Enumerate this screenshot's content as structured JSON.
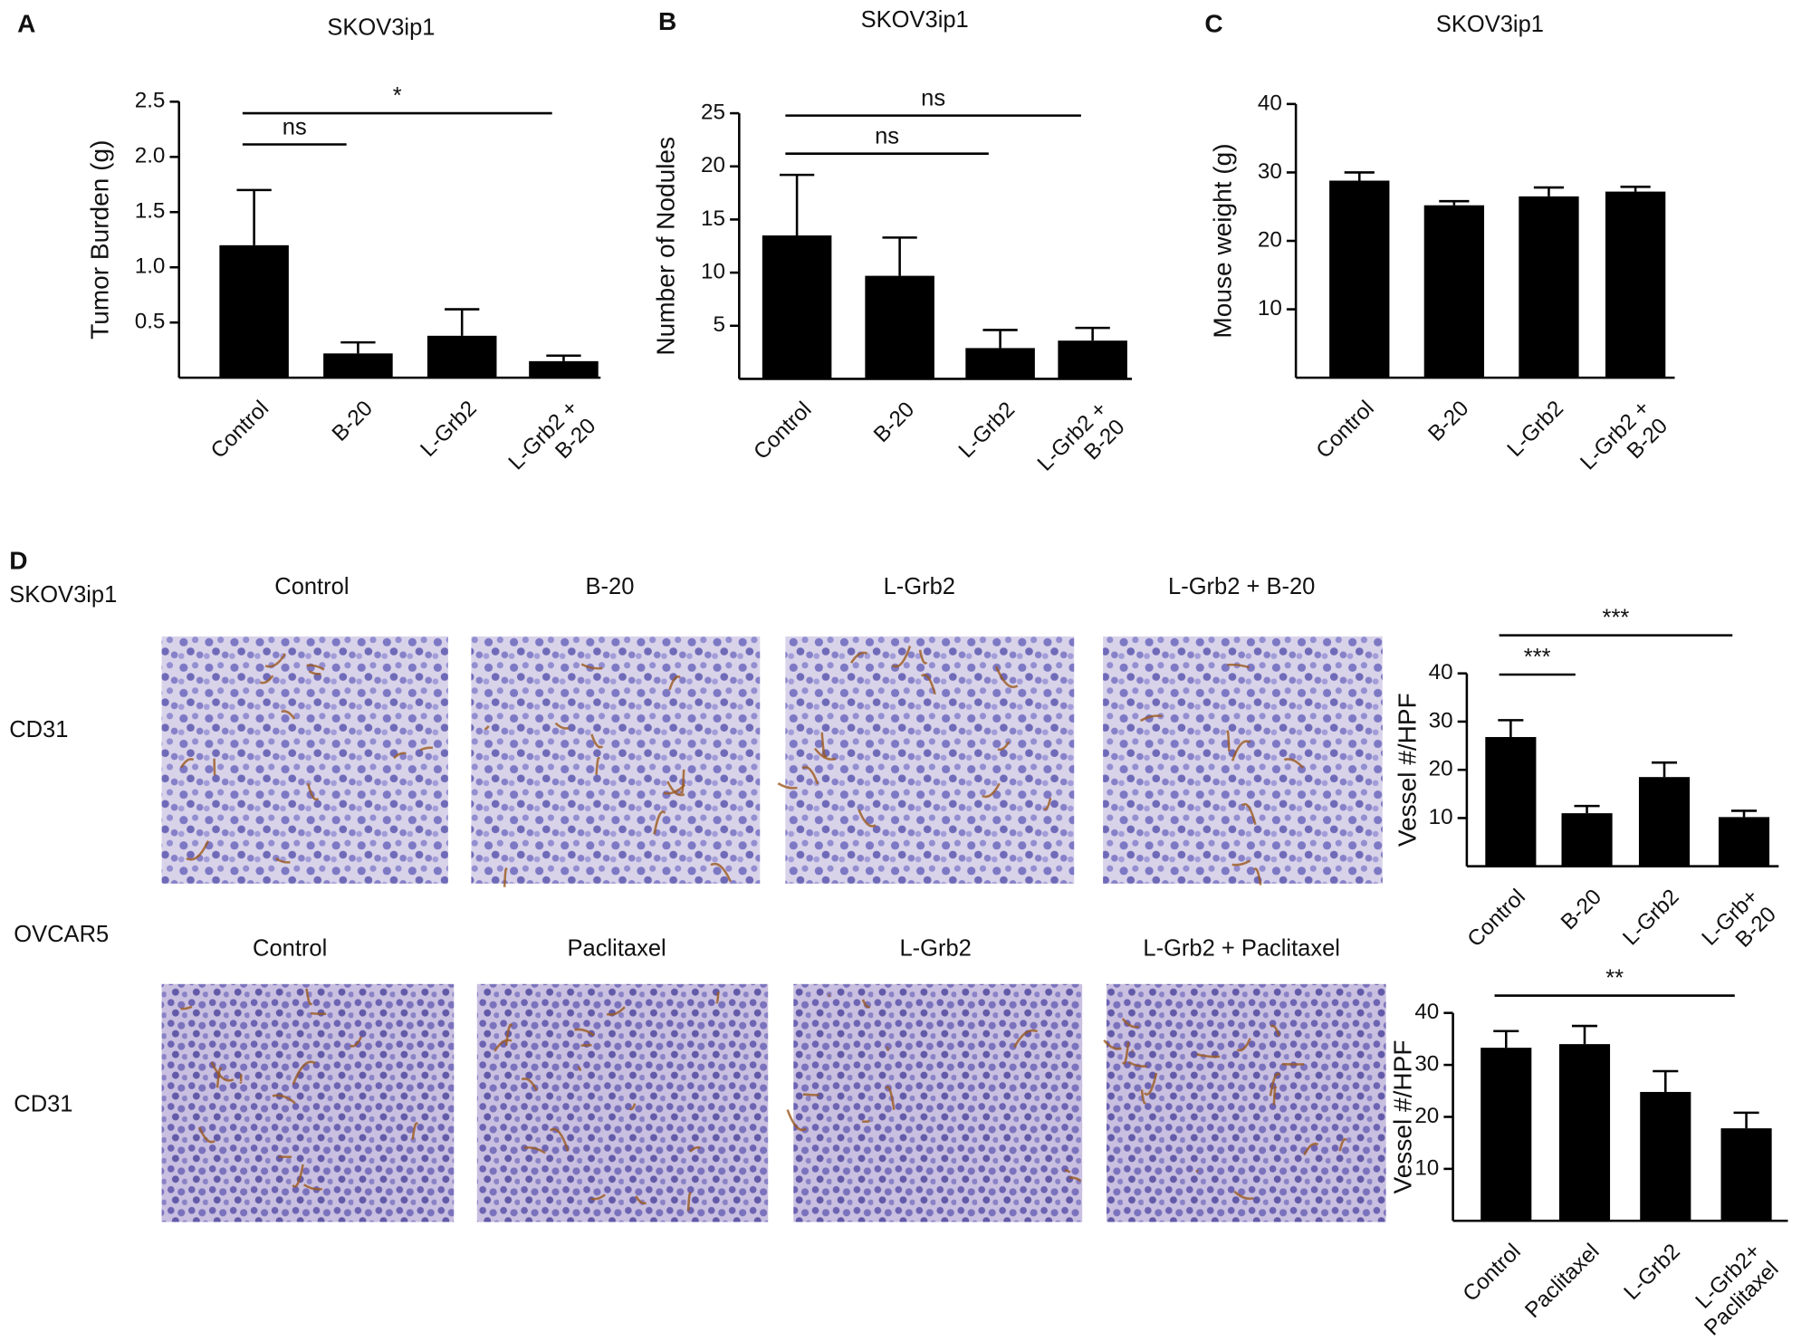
{
  "chart_data": [
    {
      "type": "bar",
      "panel": "A",
      "title": "SKOV3ip1",
      "y_label": "Tumor Burden (g)",
      "categories": [
        "Control",
        "B-20",
        "L-Grb2",
        "L-Grb2 +\nB-20"
      ],
      "values": [
        1.2,
        0.22,
        0.38,
        0.15
      ],
      "errors": [
        0.5,
        0.1,
        0.24,
        0.05
      ],
      "color": "#000000",
      "ylim": [
        0,
        2.5
      ],
      "yticks": [
        0.5,
        {
          "value": 1,
          "label": "1.0"
        },
        1.5,
        {
          "value": 2,
          "label": "2.0"
        },
        2.5
      ],
      "annotations": [
        {
          "text": "ns",
          "groups": [
            "Control",
            "B-20"
          ]
        },
        {
          "text": "*",
          "groups": [
            "Control",
            "L-Grb2 +\nB-20"
          ]
        }
      ]
    },
    {
      "type": "bar",
      "panel": "B",
      "title": "SKOV3ip1",
      "y_label": "Number of Nodules",
      "categories": [
        "Control",
        "B-20",
        "L-Grb2",
        "L-Grb2 +\nB-20"
      ],
      "values": [
        13.5,
        9.7,
        2.9,
        3.6
      ],
      "errors": [
        5.7,
        3.6,
        1.7,
        1.2
      ],
      "color": "#000000",
      "ylim": [
        0,
        25
      ],
      "yticks": [
        5,
        10,
        15,
        20,
        25
      ],
      "annotations": [
        {
          "text": "ns",
          "groups": [
            "Control",
            "L-Grb2"
          ]
        },
        {
          "text": "ns",
          "groups": [
            "Control",
            "L-Grb2 +\nB-20"
          ]
        }
      ]
    },
    {
      "type": "bar",
      "panel": "C",
      "title": "SKOV3ip1",
      "y_label": "Mouse weight (g)",
      "categories": [
        "Control",
        "B-20",
        "L-Grb2",
        "L-Grb2 +\nB-20"
      ],
      "values": [
        28.8,
        25.2,
        26.5,
        27.2
      ],
      "errors": [
        1.2,
        0.6,
        1.3,
        0.7
      ],
      "color": "#000000",
      "ylim": [
        0,
        40
      ],
      "yticks": [
        10,
        20,
        30,
        40
      ],
      "annotations": []
    },
    {
      "type": "bar",
      "y_label": "Vessel #/HPF",
      "categories": [
        "Control",
        "B-20",
        "L-Grb2",
        "L-Grb+\nB-20"
      ],
      "values": [
        26.8,
        11,
        18.5,
        10.2
      ],
      "errors": [
        3.5,
        1.5,
        3,
        1.3
      ],
      "color": "#000000",
      "ylim": [
        0,
        40
      ],
      "yticks": [
        10,
        20,
        30,
        40
      ],
      "annotations": [
        {
          "text": "***",
          "groups": [
            "Control",
            "B-20"
          ]
        },
        {
          "text": "***",
          "groups": [
            "Control",
            "L-Grb+\nB-20"
          ]
        }
      ]
    },
    {
      "type": "bar",
      "y_label": "Vessel #/HPF",
      "categories": [
        "Control",
        "Paclitaxel",
        "L-Grb2",
        "L-Grb2+\nPaclitaxel"
      ],
      "values": [
        33.3,
        34,
        24.8,
        17.8
      ],
      "errors": [
        3.2,
        3.5,
        4,
        3
      ],
      "color": "#000000",
      "ylim": [
        0,
        40
      ],
      "yticks": [
        10,
        20,
        30,
        40
      ],
      "annotations": [
        {
          "text": "**",
          "groups": [
            "Control",
            "L-Grb2+\nPaclitaxel"
          ]
        }
      ]
    }
  ],
  "figure": {
    "panel": "D",
    "micrograph_rows": [
      {
        "cell_line": "SKOV3ip1",
        "stain": "CD31",
        "titles": [
          "Control",
          "B-20",
          "L-Grb2",
          "L-Grb2 + B-20"
        ]
      },
      {
        "cell_line": "OVCAR5",
        "stain": "CD31",
        "titles": [
          "Control",
          "Paclitaxel",
          "L-Grb2",
          "L-Grb2 + Paclitaxel"
        ]
      }
    ]
  }
}
